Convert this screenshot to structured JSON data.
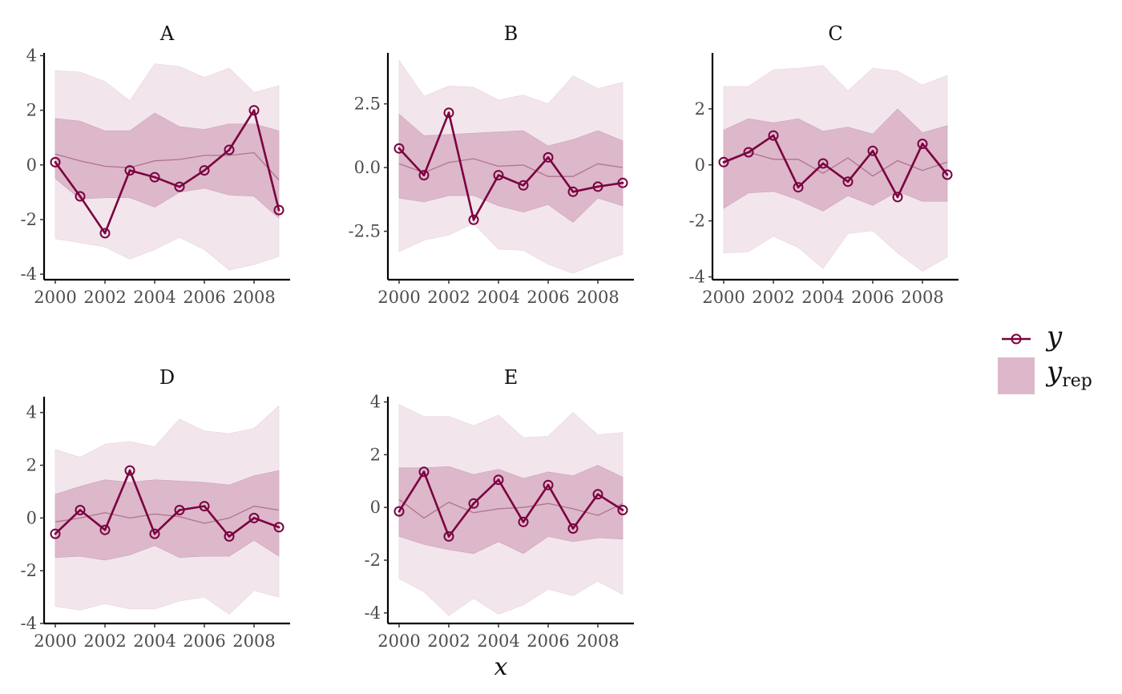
{
  "chart_data": {
    "type": "line",
    "xlabel": "x",
    "colors": {
      "y_line": "#7b0040",
      "band_outer": "#f2e6ec",
      "band_inner": "#dcb8ca",
      "median_line": "#b27290"
    },
    "legend": {
      "position": "right",
      "entries": [
        {
          "key": "y",
          "symbol": "y",
          "subscript": ""
        },
        {
          "key": "yrep",
          "symbol": "y",
          "subscript": "rep"
        }
      ]
    },
    "x_tick_labels": [
      "2000",
      "2002",
      "2004",
      "2006",
      "2008"
    ],
    "x": [
      2000,
      2001,
      2002,
      2003,
      2004,
      2005,
      2006,
      2007,
      2008,
      2009
    ],
    "panels": [
      {
        "title": "A",
        "ylim": [
          -4.2,
          4.1
        ],
        "yticks": [
          -4,
          -2,
          0,
          2,
          4
        ],
        "ytick_labels": [
          "-4",
          "-2",
          "0",
          "2",
          "4"
        ],
        "y": [
          0.1,
          -1.15,
          -2.5,
          -0.2,
          -0.45,
          -0.8,
          -0.2,
          0.55,
          2.0,
          -1.65
        ],
        "median": [
          0.4,
          0.15,
          -0.05,
          -0.1,
          0.15,
          0.2,
          0.35,
          0.35,
          0.45,
          -0.55
        ],
        "inner_lo": [
          -0.5,
          -1.25,
          -1.2,
          -1.2,
          -1.55,
          -1.0,
          -0.85,
          -1.1,
          -1.15,
          -1.95
        ],
        "inner_hi": [
          1.7,
          1.6,
          1.25,
          1.25,
          1.9,
          1.4,
          1.3,
          1.5,
          1.5,
          1.25
        ],
        "outer_lo": [
          -2.7,
          -2.85,
          -3.0,
          -3.45,
          -3.1,
          -2.65,
          -3.1,
          -3.85,
          -3.65,
          -3.35
        ],
        "outer_hi": [
          3.45,
          3.4,
          3.05,
          2.35,
          3.7,
          3.6,
          3.2,
          3.55,
          2.65,
          2.9
        ]
      },
      {
        "title": "B",
        "ylim": [
          -4.4,
          4.5
        ],
        "yticks": [
          -2.5,
          0,
          2.5
        ],
        "ytick_labels": [
          "-2.5",
          "0.0",
          "2.5"
        ],
        "y": [
          0.75,
          -0.3,
          2.15,
          -2.05,
          -0.3,
          -0.7,
          0.4,
          -0.95,
          -0.75,
          -0.6
        ],
        "median": [
          0.15,
          -0.2,
          0.2,
          0.35,
          0.05,
          0.1,
          -0.35,
          -0.35,
          0.15,
          0.0
        ],
        "inner_lo": [
          -1.2,
          -1.35,
          -1.1,
          -1.1,
          -1.5,
          -1.75,
          -1.45,
          -2.15,
          -1.2,
          -1.5
        ],
        "inner_hi": [
          2.1,
          1.25,
          1.3,
          1.35,
          1.4,
          1.45,
          0.85,
          1.1,
          1.45,
          1.05
        ],
        "outer_lo": [
          -3.3,
          -2.85,
          -2.65,
          -2.2,
          -3.2,
          -3.25,
          -3.8,
          -4.15,
          -3.75,
          -3.4
        ],
        "outer_hi": [
          4.2,
          2.8,
          3.2,
          3.15,
          2.65,
          2.85,
          2.5,
          3.6,
          3.1,
          3.35
        ]
      },
      {
        "title": "C",
        "ylim": [
          -4.1,
          4.0
        ],
        "yticks": [
          -4,
          -2,
          0,
          2
        ],
        "ytick_labels": [
          "-4",
          "-2",
          "0",
          "2"
        ],
        "y": [
          0.1,
          0.45,
          1.05,
          -0.8,
          0.05,
          -0.6,
          0.5,
          -1.15,
          0.75,
          -0.35
        ],
        "median": [
          0.05,
          0.45,
          0.2,
          0.2,
          -0.3,
          0.25,
          -0.4,
          0.15,
          -0.2,
          0.1
        ],
        "inner_lo": [
          -1.55,
          -1.0,
          -0.95,
          -1.25,
          -1.65,
          -1.1,
          -1.45,
          -0.95,
          -1.3,
          -1.3
        ],
        "inner_hi": [
          1.25,
          1.65,
          1.5,
          1.65,
          1.2,
          1.35,
          1.1,
          2.0,
          1.15,
          1.4
        ],
        "outer_lo": [
          -3.15,
          -3.1,
          -2.55,
          -2.95,
          -3.7,
          -2.45,
          -2.35,
          -3.15,
          -3.8,
          -3.3
        ],
        "outer_hi": [
          2.8,
          2.8,
          3.4,
          3.45,
          3.55,
          2.65,
          3.45,
          3.35,
          2.85,
          3.2
        ]
      },
      {
        "title": "D",
        "ylim": [
          -4.0,
          4.6
        ],
        "yticks": [
          -4,
          -2,
          0,
          2,
          4
        ],
        "ytick_labels": [
          "-4",
          "-2",
          "0",
          "2",
          "4"
        ],
        "y": [
          -0.6,
          0.3,
          -0.45,
          1.8,
          -0.6,
          0.3,
          0.45,
          -0.7,
          0.0,
          -0.35
        ],
        "median": [
          -0.15,
          0.0,
          0.2,
          0.0,
          0.15,
          0.05,
          -0.2,
          0.0,
          0.45,
          0.3
        ],
        "inner_lo": [
          -1.5,
          -1.45,
          -1.6,
          -1.4,
          -1.05,
          -1.5,
          -1.45,
          -1.45,
          -0.85,
          -1.45
        ],
        "inner_hi": [
          0.9,
          1.2,
          1.45,
          1.35,
          1.45,
          1.4,
          1.35,
          1.25,
          1.6,
          1.8
        ],
        "outer_lo": [
          -3.35,
          -3.5,
          -3.25,
          -3.45,
          -3.45,
          -3.15,
          -3.0,
          -3.65,
          -2.75,
          -3.0
        ],
        "outer_hi": [
          2.6,
          2.3,
          2.8,
          2.9,
          2.7,
          3.75,
          3.3,
          3.2,
          3.4,
          4.25
        ]
      },
      {
        "title": "E",
        "ylim": [
          -4.4,
          4.2
        ],
        "yticks": [
          -4,
          -2,
          0,
          2,
          4
        ],
        "ytick_labels": [
          "-4",
          "-2",
          "0",
          "2",
          "4"
        ],
        "y": [
          -0.15,
          1.35,
          -1.1,
          0.15,
          1.05,
          -0.55,
          0.85,
          -0.8,
          0.5,
          -0.1
        ],
        "median": [
          0.3,
          -0.4,
          0.2,
          -0.2,
          -0.05,
          0.0,
          0.15,
          -0.05,
          -0.3,
          0.15
        ],
        "inner_lo": [
          -1.1,
          -1.4,
          -1.6,
          -1.75,
          -1.3,
          -1.75,
          -1.1,
          -1.3,
          -1.15,
          -1.2
        ],
        "inner_hi": [
          1.5,
          1.5,
          1.55,
          1.25,
          1.45,
          1.1,
          1.35,
          1.2,
          1.6,
          1.15
        ],
        "outer_lo": [
          -2.7,
          -3.2,
          -4.1,
          -3.45,
          -4.05,
          -3.7,
          -3.1,
          -3.35,
          -2.8,
          -3.3
        ],
        "outer_hi": [
          3.9,
          3.45,
          3.45,
          3.1,
          3.5,
          2.65,
          2.7,
          3.6,
          2.75,
          2.85
        ]
      }
    ]
  }
}
